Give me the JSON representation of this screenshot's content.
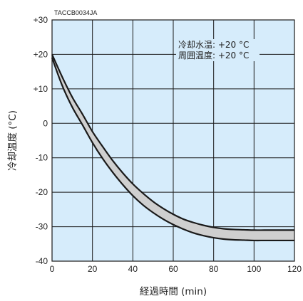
{
  "chart_data": {
    "type": "area",
    "code_label": "TACCB0034JA",
    "xlabel": "経過時間 (min)",
    "ylabel": "冷却温度 (°C)",
    "xlim": [
      0,
      120
    ],
    "ylim": [
      -40,
      30
    ],
    "x_ticks": [
      0,
      20,
      40,
      60,
      80,
      100,
      120
    ],
    "y_ticks": [
      30,
      20,
      10,
      0,
      -10,
      -20,
      -30,
      -40
    ],
    "x_tick_labels": [
      "0",
      "20",
      "40",
      "60",
      "80",
      "100",
      "120"
    ],
    "y_tick_labels": [
      "+30",
      "+20",
      "+10",
      "0",
      "-10",
      "-20",
      "-30",
      "-40"
    ],
    "grid": true,
    "annotations": [
      "冷却水温: +20 °C",
      "周囲温度: +20 °C"
    ],
    "series": [
      {
        "x": [
          0,
          5,
          10,
          15,
          20,
          25,
          30,
          35,
          40,
          45,
          50,
          55,
          60,
          65,
          70,
          75,
          80,
          85,
          90,
          95,
          100,
          105,
          110,
          115,
          120
        ],
        "values": [
          20,
          13.5,
          7.6,
          2.7,
          -2.4,
          -6.7,
          -10.8,
          -14.4,
          -17.6,
          -20.3,
          -22.7,
          -24.7,
          -26.4,
          -27.8,
          -28.8,
          -29.6,
          -30.2,
          -30.6,
          -30.8,
          -30.9,
          -31.0,
          -31.0,
          -31.0,
          -31.0,
          -31.0
        ]
      },
      {
        "x": [
          0,
          5,
          10,
          15,
          20,
          25,
          30,
          35,
          40,
          45,
          50,
          55,
          60,
          65,
          70,
          75,
          80,
          85,
          90,
          95,
          100,
          105,
          110,
          115,
          120
        ],
        "values": [
          19.0,
          11.0,
          4.7,
          -0.4,
          -5.6,
          -10.2,
          -14.2,
          -17.8,
          -21.0,
          -23.7,
          -25.9,
          -27.8,
          -29.4,
          -30.7,
          -31.8,
          -32.6,
          -33.2,
          -33.6,
          -33.8,
          -33.9,
          -34.0,
          -34.0,
          -34.0,
          -34.0,
          -34.0
        ]
      }
    ],
    "colors": {
      "plot_bg": "#d6ecfb",
      "grid": "#1a1a1a",
      "band_fill": "#cfcfcf",
      "line": "#1a1a1a"
    }
  }
}
